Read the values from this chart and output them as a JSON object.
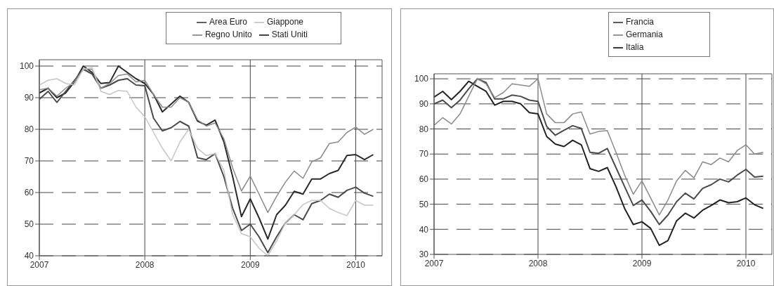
{
  "chart_data": [
    {
      "type": "line",
      "x": [
        "2007-01",
        "2007-02",
        "2007-03",
        "2007-04",
        "2007-05",
        "2007-06",
        "2007-07",
        "2007-08",
        "2007-09",
        "2007-10",
        "2007-11",
        "2007-12",
        "2008-01",
        "2008-02",
        "2008-03",
        "2008-04",
        "2008-05",
        "2008-06",
        "2008-07",
        "2008-08",
        "2008-09",
        "2008-10",
        "2008-11",
        "2008-12",
        "2009-01",
        "2009-02",
        "2009-03",
        "2009-04",
        "2009-05",
        "2009-06",
        "2009-07",
        "2009-08",
        "2009-09",
        "2009-10",
        "2009-11",
        "2009-12",
        "2010-01",
        "2010-02",
        "2010-03"
      ],
      "series": [
        {
          "name": "Stati Uniti",
          "color": "#2a2a2a",
          "values": [
            91.5,
            93,
            90,
            91.5,
            95,
            100,
            98,
            94.5,
            94.8,
            100,
            98,
            96,
            94.5,
            91,
            85.5,
            88,
            90.5,
            88.5,
            82.6,
            81.3,
            82.9,
            76,
            65,
            52.4,
            58,
            52,
            45.3,
            53,
            56,
            60.4,
            59.5,
            64.3,
            64.3,
            66,
            67,
            71.7,
            72,
            70.4,
            72
          ]
        },
        {
          "name": "Area Euro",
          "color": "#4a4a4a",
          "values": [
            89.5,
            92,
            88.5,
            92,
            95.5,
            99,
            97.5,
            93,
            94,
            95.5,
            96,
            94,
            93.8,
            83.5,
            79.5,
            80.5,
            82.5,
            81,
            71,
            70.4,
            72.3,
            65,
            55,
            48,
            50,
            46,
            41,
            46,
            50.4,
            53,
            51.4,
            56.5,
            57.5,
            59.5,
            58.5,
            60.7,
            61.7,
            59.8,
            58.8
          ]
        },
        {
          "name": "Regno Unito",
          "color": "#8a8a8a",
          "values": [
            92.5,
            93,
            90.5,
            93,
            95,
            99,
            99,
            93,
            94.5,
            97,
            97.5,
            95,
            95.5,
            91,
            87,
            87,
            90,
            88.5,
            83,
            81,
            82,
            77,
            67.8,
            60.5,
            65.2,
            59.5,
            53.7,
            58.8,
            63.3,
            66.8,
            64.5,
            69.7,
            71,
            75.5,
            76,
            79,
            80.7,
            78.4,
            80
          ]
        },
        {
          "name": "Giappone",
          "color": "#c4c4c4",
          "values": [
            94,
            95.5,
            96,
            94.5,
            94,
            99,
            99.5,
            92,
            91,
            92.3,
            92,
            87,
            84,
            79,
            74,
            70,
            76,
            80,
            74,
            71.7,
            72.3,
            67,
            53,
            47,
            46,
            42.4,
            40,
            44.7,
            50.4,
            53,
            56.2,
            57.5,
            57.5,
            55,
            53.7,
            52.7,
            57.5,
            56,
            56
          ]
        }
      ],
      "xlim": [
        "2007-01",
        "2010-04"
      ],
      "xticks": [
        "2007",
        "2008",
        "2009",
        "2010"
      ],
      "ylim": [
        40,
        102
      ],
      "yticks": [
        40,
        50,
        60,
        70,
        80,
        90,
        100
      ],
      "grid": true,
      "legend": "top",
      "line_style": "solid",
      "marker": "none"
    },
    {
      "type": "line",
      "x": [
        "2007-01",
        "2007-02",
        "2007-03",
        "2007-04",
        "2007-05",
        "2007-06",
        "2007-07",
        "2007-08",
        "2007-09",
        "2007-10",
        "2007-11",
        "2007-12",
        "2008-01",
        "2008-02",
        "2008-03",
        "2008-04",
        "2008-05",
        "2008-06",
        "2008-07",
        "2008-08",
        "2008-09",
        "2008-10",
        "2008-11",
        "2008-12",
        "2009-01",
        "2009-02",
        "2009-03",
        "2009-04",
        "2009-05",
        "2009-06",
        "2009-07",
        "2009-08",
        "2009-09",
        "2009-10",
        "2009-11",
        "2009-12",
        "2010-01",
        "2010-02",
        "2010-03"
      ],
      "series": [
        {
          "name": "Italia",
          "color": "#222222",
          "values": [
            92.7,
            95,
            91.7,
            95,
            99,
            97,
            95,
            89.5,
            91,
            91,
            90,
            86.5,
            86,
            77,
            74,
            73,
            75.5,
            73.7,
            64.2,
            63.1,
            64.6,
            57,
            48.3,
            41.9,
            43,
            40.4,
            33.6,
            35.5,
            43.4,
            46.4,
            44.5,
            47.6,
            49.5,
            51.7,
            50.6,
            51,
            52.5,
            49.8,
            48.3
          ]
        },
        {
          "name": "Francia",
          "color": "#4a4a4a",
          "values": [
            90,
            91.5,
            88.5,
            91.5,
            96,
            100,
            98.5,
            92,
            92,
            93.5,
            93,
            91.5,
            91,
            81,
            77.5,
            79.5,
            81.3,
            80.2,
            70.7,
            70.3,
            72.2,
            64.6,
            57,
            49.5,
            51.7,
            47.2,
            41.9,
            45.7,
            51,
            54.4,
            52.1,
            56.3,
            57.8,
            60,
            58.9,
            61.6,
            63.9,
            60.8,
            61.2
          ]
        },
        {
          "name": "Germania",
          "color": "#8a8a8a",
          "values": [
            81.5,
            84.5,
            82,
            86,
            93,
            100,
            98,
            92.5,
            94.5,
            98,
            97.5,
            97,
            100,
            86,
            82.5,
            82.5,
            86,
            86.8,
            78,
            79,
            79.4,
            70.7,
            61.6,
            54,
            59.3,
            52.5,
            45.7,
            51.7,
            59.3,
            63.5,
            60.5,
            66.9,
            65.8,
            68.4,
            66.9,
            71.4,
            73.7,
            70,
            70.7
          ]
        }
      ],
      "xlim": [
        "2007-01",
        "2010-04"
      ],
      "xticks": [
        "2007",
        "2008",
        "2009",
        "2010"
      ],
      "ylim": [
        30,
        102
      ],
      "yticks": [
        30,
        40,
        50,
        60,
        70,
        80,
        90,
        100
      ],
      "grid": true,
      "legend": "top",
      "line_style": "solid",
      "marker": "none"
    }
  ]
}
